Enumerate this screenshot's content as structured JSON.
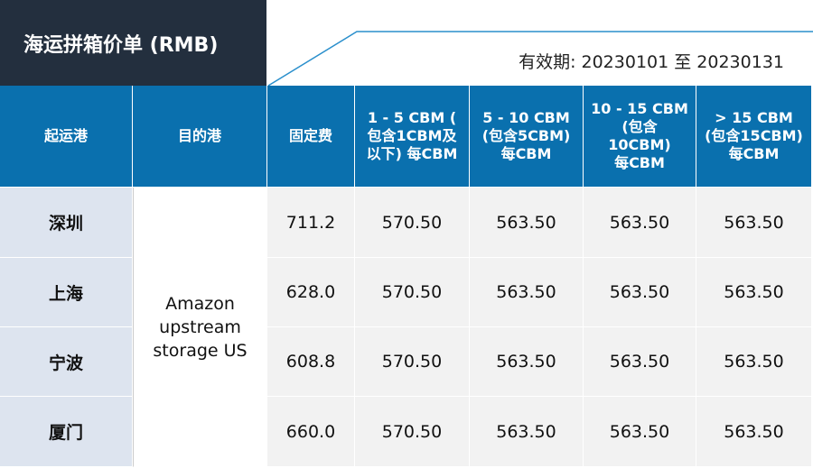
{
  "header": {
    "title": "海运拼箱价单 (RMB)",
    "validity": "有效期: 20230101 至 20230131"
  },
  "table": {
    "columns": [
      [
        "起运港"
      ],
      [
        "目的港"
      ],
      [
        "固定费"
      ],
      [
        "1 - 5 CBM (",
        "包含1CBM及",
        "以下) 每CBM"
      ],
      [
        "5 - 10 CBM",
        "(包含5CBM)",
        "每CBM"
      ],
      [
        "10 - 15 CBM",
        "(包含",
        "10CBM)",
        "每CBM"
      ],
      [
        "> 15 CBM",
        "(包含15CBM)",
        "每CBM"
      ]
    ],
    "destination": [
      "Amazon",
      "upstream",
      "storage US"
    ],
    "rows": [
      {
        "origin": "深圳",
        "fixed": "711.2",
        "prices": [
          "570.50",
          "563.50",
          "563.50",
          "563.50"
        ]
      },
      {
        "origin": "上海",
        "fixed": "628.0",
        "prices": [
          "570.50",
          "563.50",
          "563.50",
          "563.50"
        ]
      },
      {
        "origin": "宁波",
        "fixed": "608.8",
        "prices": [
          "570.50",
          "563.50",
          "563.50",
          "563.50"
        ]
      },
      {
        "origin": "厦门",
        "fixed": "660.0",
        "prices": [
          "570.50",
          "563.50",
          "563.50",
          "563.50"
        ]
      }
    ]
  }
}
